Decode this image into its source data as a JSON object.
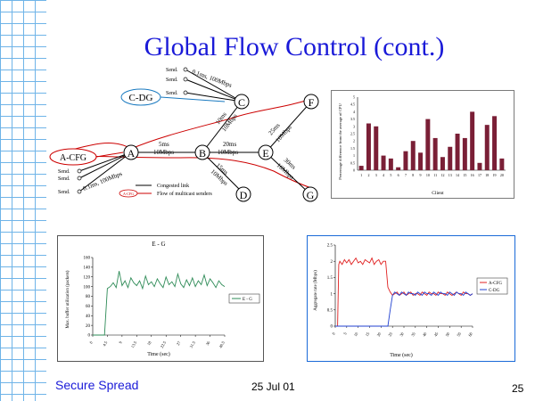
{
  "slide": {
    "title": "Global Flow Control (cont.)",
    "footer_left": "Secure Spread",
    "footer_date": "25 Jul 01",
    "page_number": "25"
  },
  "diagram": {
    "nodes": [
      "A",
      "B",
      "C",
      "D",
      "E",
      "F",
      "G"
    ],
    "groups": [
      "C-DG",
      "A-CFG"
    ],
    "senders_top": [
      "Send.",
      "Send.",
      "Send."
    ],
    "senders_left": [
      "Send.",
      "Send.",
      "Send."
    ],
    "link_labels": {
      "top": "0.1ms, 100Mbps",
      "left": "0.1ms, 100Mbps",
      "ab": [
        "5ms",
        "10Mbps"
      ],
      "be": [
        "20ms",
        "10Mbps"
      ],
      "bc": [
        "10ms",
        "10Mbps"
      ],
      "bd": [
        "15ms",
        "10Mbps"
      ],
      "ef": [
        "25ms",
        "10Mbps"
      ],
      "eg": [
        "30ms",
        "10Mbps"
      ]
    },
    "legend": [
      {
        "label": "Congested link",
        "color": "#000000"
      },
      {
        "label": "Flow of multicast senders",
        "color": "#cc0000",
        "marker": "A-CFG"
      }
    ]
  },
  "chart_data": [
    {
      "type": "bar",
      "title": "",
      "xlabel": "Client",
      "ylabel": "Percentage difference from the average of CPU",
      "categories": [
        "1",
        "2",
        "3",
        "4",
        "5",
        "6",
        "7",
        "8",
        "9",
        "10",
        "11",
        "12",
        "13",
        "14",
        "15",
        "16",
        "17",
        "18",
        "19",
        "20"
      ],
      "values": [
        0.3,
        3.2,
        3.0,
        1.0,
        0.8,
        0.2,
        1.3,
        2.0,
        1.2,
        3.5,
        2.2,
        0.9,
        1.6,
        2.5,
        2.2,
        4.0,
        0.5,
        3.1,
        3.7,
        0.8
      ],
      "ylim": [
        0,
        5
      ],
      "yticks": [
        "0",
        "0.5",
        "1",
        "1.5",
        "2",
        "2.5",
        "3",
        "3.5",
        "4",
        "4.5",
        "5"
      ],
      "color": "#7a1f36",
      "grid": false
    },
    {
      "type": "line",
      "title": "E - G",
      "xlabel": "Time (sec)",
      "ylabel": "Max. buffer utilization (packets)",
      "ylim": [
        0,
        160
      ],
      "yticks": [
        "0",
        "20",
        "40",
        "60",
        "80",
        "100",
        "120",
        "140",
        "160"
      ],
      "xticks": [
        "0",
        "4.5",
        "9",
        "13.5",
        "18",
        "22.5",
        "27",
        "31.5",
        "36",
        "40.5"
      ],
      "xlim": [
        0,
        45
      ],
      "series": [
        {
          "name": "E - G",
          "color": "#2e8b57",
          "x": [
            0,
            1,
            2,
            3,
            4,
            5,
            6,
            7,
            8,
            9,
            10,
            11,
            12,
            13,
            14,
            15,
            16,
            17,
            18,
            19,
            20,
            21,
            22,
            23,
            24,
            25,
            26,
            27,
            28,
            29,
            30,
            31,
            32,
            33,
            34,
            35,
            36,
            37,
            38,
            39,
            40,
            41,
            42,
            43,
            44,
            45
          ],
          "values": [
            0,
            0,
            0,
            0,
            0,
            96,
            100,
            108,
            98,
            132,
            102,
            112,
            98,
            118,
            108,
            102,
            112,
            96,
            122,
            104,
            110,
            100,
            116,
            106,
            98,
            120,
            104,
            110,
            100,
            126,
            106,
            98,
            114,
            102,
            118,
            100,
            112,
            104,
            124,
            102,
            116,
            108,
            98,
            112,
            104,
            100
          ]
        }
      ],
      "legend": "right",
      "grid": false
    },
    {
      "type": "line",
      "title": "",
      "xlabel": "Time (sec)",
      "ylabel": "Aggregate rate (Mbps)",
      "ylim": [
        0,
        2.5
      ],
      "yticks": [
        "0",
        "0.5",
        "1",
        "1.5",
        "2",
        "2.5"
      ],
      "xticks": [
        "0",
        "5",
        "10",
        "15",
        "20",
        "25",
        "30",
        "35",
        "40",
        "45",
        "50",
        "55",
        "60"
      ],
      "xlim": [
        0,
        60
      ],
      "series": [
        {
          "name": "A-CFG",
          "color": "#e02020",
          "x": [
            0,
            1,
            1.5,
            2,
            3,
            4,
            5,
            6,
            7,
            8,
            9,
            10,
            11,
            12,
            13,
            14,
            15,
            16,
            17,
            18,
            19,
            20,
            21,
            22,
            23,
            24,
            25,
            26,
            27,
            28,
            29,
            30,
            31,
            32,
            33,
            34,
            35,
            36,
            37,
            38,
            39,
            40,
            41,
            42,
            43,
            44,
            45,
            46,
            47,
            48,
            49,
            50,
            51,
            52,
            53,
            54,
            55,
            56,
            57,
            58,
            59,
            60
          ],
          "values": [
            0,
            0,
            1.9,
            2.0,
            1.9,
            2.05,
            1.95,
            2.05,
            1.9,
            2.0,
            2.1,
            1.95,
            2.0,
            1.9,
            2.05,
            2.0,
            1.95,
            2.1,
            1.9,
            2.0,
            2.05,
            1.9,
            2.0,
            2.0,
            1.2,
            1.05,
            0.95,
            1.0,
            1.05,
            0.95,
            1.0,
            1.05,
            0.95,
            1.0,
            1.05,
            0.95,
            1.0,
            1.0,
            0.95,
            1.05,
            1.0,
            0.95,
            1.05,
            1.0,
            1.0,
            0.95,
            1.05,
            1.0,
            1.0,
            0.95,
            1.05,
            1.0,
            0.95,
            1.0,
            1.05,
            1.0,
            0.95,
            1.05,
            1.0,
            1.0,
            0.95,
            1.0
          ]
        },
        {
          "name": "C-DG",
          "color": "#2040d0",
          "x": [
            0,
            5,
            10,
            15,
            20,
            22,
            23,
            24,
            25,
            26,
            27,
            28,
            29,
            30,
            31,
            32,
            33,
            34,
            35,
            36,
            37,
            38,
            39,
            40,
            41,
            42,
            43,
            44,
            45,
            46,
            47,
            48,
            49,
            50,
            51,
            52,
            53,
            54,
            55,
            56,
            57,
            58,
            59,
            60
          ],
          "values": [
            0,
            0,
            0,
            0,
            0,
            0,
            0,
            0.5,
            0.95,
            1.05,
            1.0,
            0.95,
            1.05,
            1.0,
            0.95,
            1.05,
            1.0,
            1.0,
            0.95,
            1.05,
            1.0,
            0.95,
            1.05,
            1.0,
            1.0,
            0.95,
            1.05,
            1.0,
            0.95,
            1.05,
            1.0,
            1.0,
            0.95,
            1.05,
            1.0,
            0.95,
            1.05,
            1.0,
            1.0,
            0.95,
            1.05,
            1.0,
            0.95,
            1.0
          ]
        }
      ],
      "legend": "right",
      "grid": false
    }
  ]
}
